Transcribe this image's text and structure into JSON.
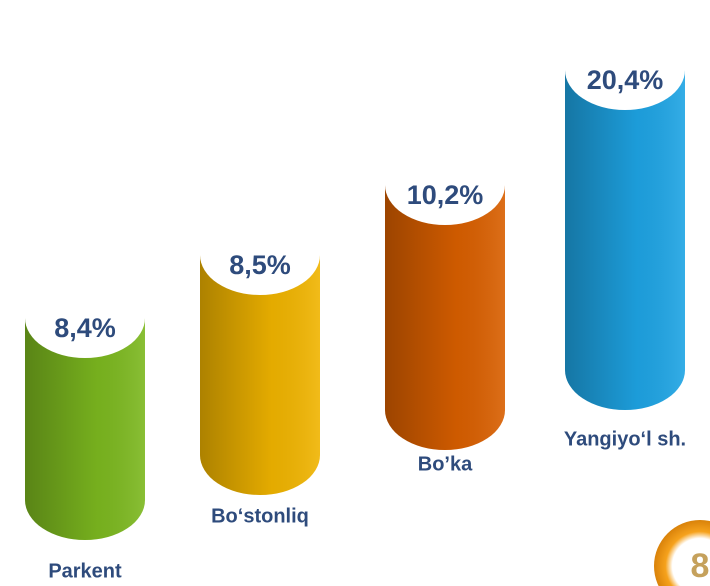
{
  "chart_data": {
    "type": "cylinder",
    "categories": [
      "Parkent",
      "Bo‘stonliq",
      "Bo’ka",
      "Yangiyo‘l sh."
    ],
    "values": [
      8.4,
      8.5,
      10.2,
      20.4
    ],
    "value_labels": [
      "8,4%",
      "8,5%",
      "10,2%",
      "20,4%"
    ],
    "colors": [
      "#7cb81f",
      "#f0b400",
      "#d95f00",
      "#1ea4e4"
    ],
    "badge": "8"
  }
}
